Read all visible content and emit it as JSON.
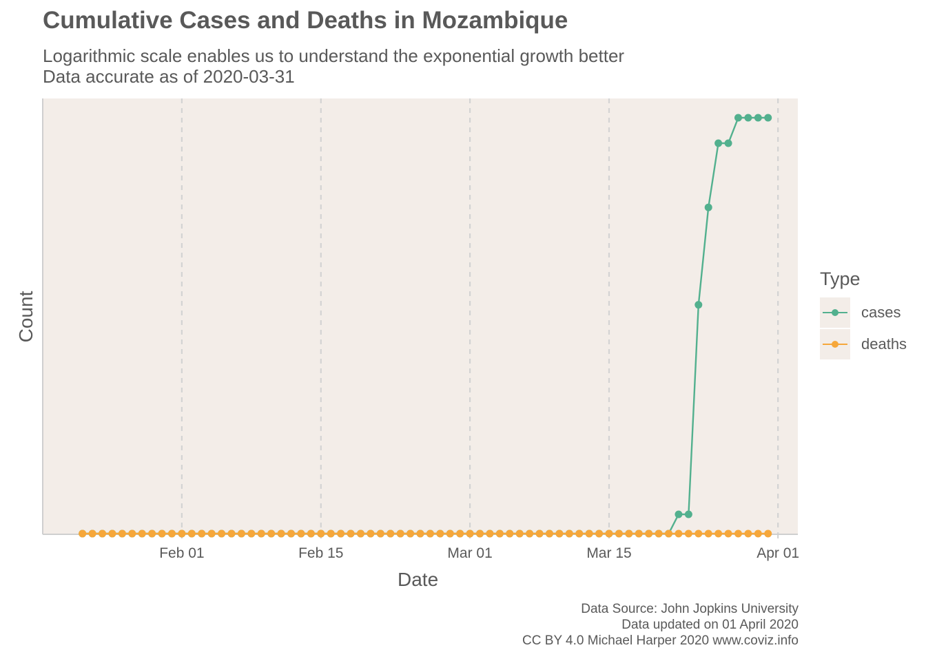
{
  "title": "Cumulative Cases and Deaths in Mozambique",
  "subtitle_lines": [
    "Logarithmic scale enables us to understand the exponential growth better",
    "Data accurate as of 2020-03-31"
  ],
  "caption_lines": [
    "Data Source: John Jopkins University",
    "Data updated on 01 April 2020",
    "CC BY 4.0 Michael Harper 2020 www.coviz.info"
  ],
  "colors": {
    "panel_bg": "#f3ede8",
    "grid": "#d3d3d3",
    "axis": "#cfcfcf",
    "text": "#595959",
    "cases": "#52b08e",
    "deaths": "#f6a73a"
  },
  "chart_data": {
    "type": "line",
    "xlabel": "Date",
    "ylabel": "Count",
    "y_scale": "log",
    "y_tick_labels_shown": false,
    "grid": "vertical dashed major gridlines",
    "legend_title": "Type",
    "legend_position": "right",
    "x_range": [
      "2020-01-22",
      "2020-03-31"
    ],
    "x_ticks": [
      {
        "date": "2020-02-01",
        "label": "Feb 01"
      },
      {
        "date": "2020-02-15",
        "label": "Feb 15"
      },
      {
        "date": "2020-03-01",
        "label": "Mar 01"
      },
      {
        "date": "2020-03-15",
        "label": "Mar 15"
      },
      {
        "date": "2020-04-01",
        "label": "Apr 01"
      }
    ],
    "series": [
      {
        "name": "cases",
        "values": [
          {
            "date": "2020-01-22",
            "value": 0
          },
          {
            "date": "2020-03-21",
            "value": 0
          },
          {
            "date": "2020-03-22",
            "value": 1
          },
          {
            "date": "2020-03-23",
            "value": 1
          },
          {
            "date": "2020-03-24",
            "value": 3
          },
          {
            "date": "2020-03-25",
            "value": 5
          },
          {
            "date": "2020-03-26",
            "value": 7
          },
          {
            "date": "2020-03-27",
            "value": 7
          },
          {
            "date": "2020-03-28",
            "value": 8
          },
          {
            "date": "2020-03-29",
            "value": 8
          },
          {
            "date": "2020-03-30",
            "value": 8
          },
          {
            "date": "2020-03-31",
            "value": 8
          }
        ]
      },
      {
        "name": "deaths",
        "values": [
          {
            "date": "2020-01-22",
            "value": 0
          },
          {
            "date": "2020-03-31",
            "value": 0
          }
        ]
      }
    ]
  }
}
